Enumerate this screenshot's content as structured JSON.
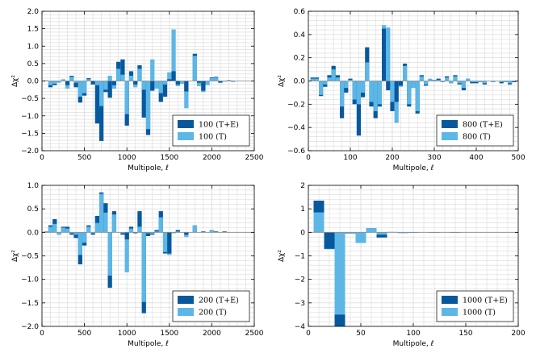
{
  "colors": {
    "dark": "#08589e",
    "light": "#5cb7e6"
  },
  "chart_data": [
    {
      "type": "bar",
      "xlabel": "Multipole, ℓ",
      "ylabel": "Δχ²",
      "xlim": [
        0,
        2500
      ],
      "ylim": [
        -2.0,
        2.0
      ],
      "xticks": [
        0,
        500,
        1000,
        1500,
        2000,
        2500
      ],
      "yticks": [
        -2.0,
        -1.5,
        -1.0,
        -0.5,
        0.0,
        0.5,
        1.0,
        1.5,
        2.0
      ],
      "ytick_labels": [
        "−2.0",
        "−1.5",
        "−1.0",
        "−0.5",
        "0.0",
        "0.5",
        "1.0",
        "1.5",
        "2.0"
      ],
      "legend_position": "lower-right",
      "bin_width": 50,
      "series": [
        {
          "name": "100 (T+E)",
          "color_key": "dark",
          "x": [
            50,
            100,
            150,
            200,
            250,
            300,
            350,
            400,
            450,
            500,
            550,
            600,
            650,
            700,
            750,
            800,
            850,
            900,
            950,
            1000,
            1050,
            1100,
            1150,
            1200,
            1250,
            1300,
            1350,
            1400,
            1450,
            1500,
            1550,
            1600,
            1650,
            1700,
            1750,
            1800,
            1850,
            1900,
            1950,
            2000,
            2050,
            2100,
            2150,
            2200,
            2250,
            2300,
            2350,
            2400,
            2450
          ],
          "values": [
            0.0,
            -0.18,
            -0.12,
            0.0,
            0.0,
            -0.12,
            0.15,
            -0.18,
            -0.62,
            -0.42,
            0.08,
            -0.1,
            -1.22,
            -1.72,
            -0.32,
            -0.48,
            -0.12,
            0.55,
            0.62,
            -1.28,
            0.28,
            -0.1,
            0.45,
            -1.05,
            -1.55,
            -0.28,
            0.0,
            -0.6,
            -0.45,
            0.05,
            0.28,
            -0.1,
            0.0,
            -0.3,
            0.0,
            0.78,
            -0.05,
            -0.28,
            0.0,
            0.1,
            0.12,
            -0.05,
            0.0,
            0.02,
            -0.02,
            0.0,
            0.0,
            0.0,
            0.0
          ]
        },
        {
          "name": "100 (T)",
          "color_key": "light",
          "x": [
            50,
            100,
            150,
            200,
            250,
            300,
            350,
            400,
            450,
            500,
            550,
            600,
            650,
            700,
            750,
            800,
            850,
            900,
            950,
            1000,
            1050,
            1100,
            1150,
            1200,
            1250,
            1300,
            1350,
            1400,
            1450,
            1500,
            1550,
            1600,
            1650,
            1700,
            1750,
            1800,
            1850,
            1900,
            1950,
            2000,
            2050,
            2100,
            2150,
            2200,
            2250,
            2300,
            2350,
            2400,
            2450
          ],
          "values": [
            0.02,
            -0.12,
            -0.08,
            -0.05,
            0.05,
            -0.22,
            0.12,
            -0.05,
            -0.45,
            -0.35,
            0.05,
            0.0,
            -0.12,
            -0.72,
            -0.25,
            0.15,
            -0.22,
            0.35,
            0.18,
            -0.95,
            0.15,
            -0.18,
            0.35,
            -0.25,
            -1.38,
            0.62,
            -0.22,
            -0.35,
            -0.1,
            0.25,
            1.48,
            -0.15,
            -0.08,
            -0.78,
            0.0,
            0.72,
            -0.15,
            -0.32,
            -0.12,
            0.08,
            0.1,
            0.0,
            -0.02,
            0.0,
            0.0,
            0.0,
            0.0,
            0.0,
            0.0
          ]
        }
      ]
    },
    {
      "type": "bar",
      "xlabel": "Multipole, ℓ",
      "ylabel": "Δχ²",
      "xlim": [
        0,
        500
      ],
      "ylim": [
        -0.6,
        0.6
      ],
      "xticks": [
        0,
        100,
        200,
        300,
        400,
        500
      ],
      "yticks": [
        -0.6,
        -0.4,
        -0.2,
        0.0,
        0.2,
        0.4,
        0.6
      ],
      "ytick_labels": [
        "−0.6",
        "−0.4",
        "−0.2",
        "0.0",
        "0.2",
        "0.4",
        "0.6"
      ],
      "legend_position": "lower-right",
      "bin_width": 10,
      "series": [
        {
          "name": "800 (T+E)",
          "color_key": "dark",
          "x": [
            10,
            20,
            30,
            40,
            50,
            60,
            70,
            80,
            90,
            100,
            110,
            120,
            130,
            140,
            150,
            160,
            170,
            180,
            190,
            200,
            210,
            220,
            230,
            240,
            250,
            260,
            270,
            280,
            290,
            300,
            310,
            320,
            330,
            340,
            350,
            360,
            370,
            380,
            390,
            400,
            410,
            420,
            430,
            440,
            450,
            460,
            470,
            480,
            490
          ],
          "values": [
            0.03,
            0.03,
            -0.13,
            -0.05,
            0.05,
            0.13,
            0.05,
            -0.32,
            -0.1,
            0.02,
            -0.2,
            -0.47,
            -0.14,
            0.29,
            -0.22,
            -0.32,
            -0.22,
            0.45,
            -0.08,
            -0.26,
            -0.18,
            -0.04,
            0.15,
            -0.22,
            -0.06,
            -0.28,
            0.05,
            -0.04,
            0.0,
            0.01,
            0.02,
            -0.01,
            0.04,
            -0.02,
            0.05,
            -0.03,
            -0.08,
            0.02,
            -0.02,
            -0.02,
            -0.01,
            -0.03,
            0.0,
            -0.01,
            0.0,
            -0.02,
            -0.01,
            -0.03,
            -0.01
          ]
        },
        {
          "name": "800 (T)",
          "color_key": "light",
          "x": [
            10,
            20,
            30,
            40,
            50,
            60,
            70,
            80,
            90,
            100,
            110,
            120,
            130,
            140,
            150,
            160,
            170,
            180,
            190,
            200,
            210,
            220,
            230,
            240,
            250,
            260,
            270,
            280,
            290,
            300,
            310,
            320,
            330,
            340,
            350,
            360,
            370,
            380,
            390,
            400,
            410,
            420,
            430,
            440,
            450,
            460,
            470,
            480,
            490
          ],
          "values": [
            0.02,
            0.02,
            -0.12,
            -0.03,
            0.03,
            0.1,
            0.03,
            -0.22,
            -0.06,
            0.01,
            -0.16,
            -0.2,
            -0.1,
            0.16,
            -0.18,
            -0.26,
            -0.2,
            0.48,
            0.46,
            -0.18,
            -0.36,
            -0.05,
            0.13,
            -0.2,
            -0.06,
            -0.26,
            0.04,
            -0.03,
            0.02,
            0.01,
            0.01,
            -0.01,
            0.03,
            -0.02,
            0.04,
            -0.02,
            -0.06,
            0.02,
            -0.01,
            -0.01,
            -0.01,
            -0.02,
            0.0,
            -0.01,
            0.0,
            -0.01,
            -0.01,
            -0.02,
            0.0
          ]
        }
      ]
    },
    {
      "type": "bar",
      "xlabel": "Multipole, ℓ",
      "ylabel": "Δχ²",
      "xlim": [
        0,
        2500
      ],
      "ylim": [
        -2.0,
        1.0
      ],
      "xticks": [
        0,
        500,
        1000,
        1500,
        2000,
        2500
      ],
      "yticks": [
        -2.0,
        -1.5,
        -1.0,
        -0.5,
        0.0,
        0.5,
        1.0
      ],
      "ytick_labels": [
        "−2.0",
        "−1.5",
        "−1.0",
        "−0.5",
        "0.0",
        "0.5",
        "1.0"
      ],
      "legend_position": "lower-right",
      "bin_width": 50,
      "series": [
        {
          "name": "200 (T+E)",
          "color_key": "dark",
          "x": [
            50,
            100,
            150,
            200,
            250,
            300,
            350,
            400,
            450,
            500,
            550,
            600,
            650,
            700,
            750,
            800,
            850,
            900,
            950,
            1000,
            1050,
            1100,
            1150,
            1200,
            1250,
            1300,
            1350,
            1400,
            1450,
            1500,
            1550,
            1600,
            1650,
            1700,
            1750,
            1800,
            1850,
            1900,
            1950,
            2000,
            2050,
            2100,
            2150,
            2200,
            2250,
            2300,
            2350,
            2400,
            2450
          ],
          "values": [
            0.02,
            0.15,
            0.28,
            -0.05,
            0.12,
            0.12,
            -0.05,
            -0.12,
            -0.68,
            -0.28,
            0.15,
            -0.05,
            0.35,
            0.85,
            0.62,
            -1.18,
            0.45,
            0.0,
            -0.05,
            -0.15,
            0.12,
            -0.02,
            0.45,
            -1.72,
            -0.08,
            -0.05,
            0.05,
            0.45,
            -0.45,
            -0.45,
            -0.02,
            0.05,
            0.0,
            -0.05,
            0.0,
            0.15,
            0.0,
            0.02,
            0.0,
            0.05,
            0.02,
            0.0,
            0.02,
            0.0,
            0.0,
            0.0,
            0.0,
            0.0,
            0.0
          ]
        },
        {
          "name": "200 (T)",
          "color_key": "light",
          "x": [
            50,
            100,
            150,
            200,
            250,
            300,
            350,
            400,
            450,
            500,
            550,
            600,
            650,
            700,
            750,
            800,
            850,
            900,
            950,
            1000,
            1050,
            1100,
            1150,
            1200,
            1250,
            1300,
            1350,
            1400,
            1450,
            1500,
            1550,
            1600,
            1650,
            1700,
            1750,
            1800,
            1850,
            1900,
            1950,
            2000,
            2050,
            2100,
            2150,
            2200,
            2250,
            2300,
            2350,
            2400,
            2450
          ],
          "values": [
            0.02,
            0.12,
            0.18,
            -0.05,
            0.1,
            0.08,
            -0.02,
            -0.05,
            -0.48,
            -0.22,
            0.12,
            -0.02,
            0.2,
            0.82,
            0.42,
            -0.92,
            0.38,
            0.0,
            -0.02,
            -0.85,
            0.08,
            0.0,
            0.12,
            -1.48,
            -0.02,
            -0.03,
            0.02,
            0.32,
            -0.42,
            -0.48,
            -0.02,
            0.02,
            0.0,
            -0.1,
            0.0,
            0.15,
            0.0,
            0.0,
            0.0,
            0.05,
            0.0,
            0.0,
            0.0,
            0.0,
            0.0,
            0.0,
            0.0,
            0.0,
            0.0
          ]
        }
      ]
    },
    {
      "type": "bar",
      "xlabel": "Multipole, ℓ",
      "ylabel": "Δχ²",
      "xlim": [
        0,
        200
      ],
      "ylim": [
        -4,
        2
      ],
      "xticks": [
        0,
        50,
        100,
        150,
        200
      ],
      "yticks": [
        -4,
        -3,
        -2,
        -1,
        0,
        1,
        2
      ],
      "ytick_labels": [
        "−4",
        "−3",
        "−2",
        "−1",
        "0",
        "1",
        "2"
      ],
      "legend_position": "lower-right",
      "bin_width": 10,
      "series": [
        {
          "name": "1000 (T+E)",
          "color_key": "dark",
          "x": [
            10,
            20,
            30,
            40,
            50,
            60,
            70,
            80,
            90,
            100,
            110,
            120,
            130,
            140,
            150,
            160,
            170,
            180,
            190
          ],
          "values": [
            1.35,
            -0.7,
            -4.0,
            -0.05,
            -0.45,
            0.18,
            -0.22,
            0.0,
            -0.03,
            -0.02,
            0.0,
            -0.01,
            0.0,
            -0.01,
            0.0,
            0.0,
            0.0,
            0.0,
            0.0
          ]
        },
        {
          "name": "1000 (T)",
          "color_key": "light",
          "x": [
            10,
            20,
            30,
            40,
            50,
            60,
            70,
            80,
            90,
            100,
            110,
            120,
            130,
            140,
            150,
            160,
            170,
            180,
            190
          ],
          "values": [
            0.85,
            -0.72,
            -3.5,
            -0.05,
            -0.45,
            0.18,
            -0.1,
            0.02,
            -0.03,
            -0.02,
            0.0,
            -0.01,
            0.0,
            -0.01,
            0.0,
            0.0,
            0.0,
            0.0,
            0.0
          ]
        }
      ]
    }
  ]
}
